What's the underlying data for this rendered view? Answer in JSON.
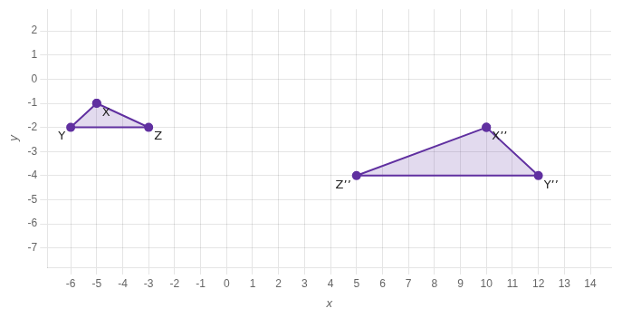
{
  "chart_data": {
    "type": "scatter",
    "x_label": "x",
    "y_label": "y",
    "series": [
      {
        "x": [
          -5,
          -6,
          -3
        ],
        "values": [
          -1,
          -2,
          -2
        ],
        "point_labels": [
          "X",
          "Y",
          "Z"
        ]
      },
      {
        "x": [
          10,
          12,
          5
        ],
        "values": [
          -2,
          -4,
          -4
        ],
        "point_labels": [
          "X’’",
          "Y’’",
          "Z’’"
        ]
      }
    ],
    "color": "#6030a0",
    "marker": "o",
    "xlim": [
      -6.9,
      14.8
    ],
    "ylim": [
      -7.8,
      2.9
    ],
    "xticks": [
      -6,
      -5,
      -4,
      -3,
      -2,
      -1,
      0,
      1,
      2,
      3,
      4,
      5,
      6,
      7,
      8,
      9,
      10,
      11,
      12,
      13,
      14
    ],
    "yticks": [
      -7,
      -6,
      -5,
      -4,
      -3,
      -2,
      -1,
      0,
      1,
      2
    ],
    "grid": true
  }
}
